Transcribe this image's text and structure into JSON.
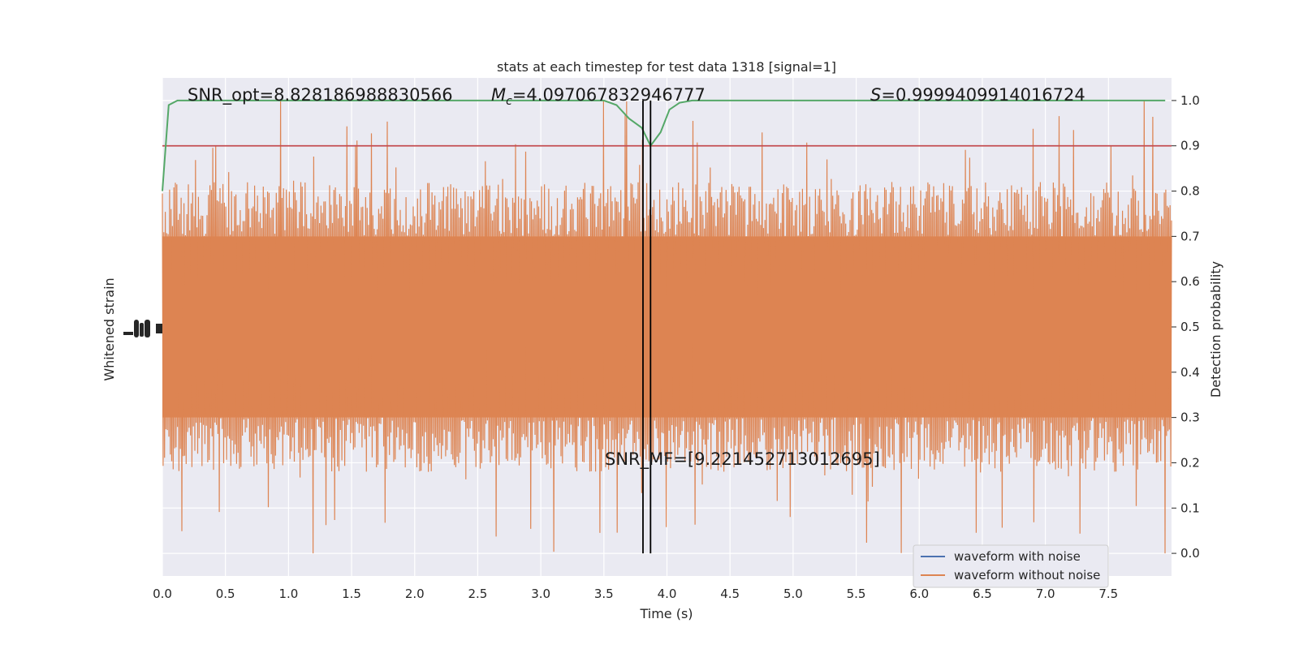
{
  "chart_data": {
    "type": "line",
    "title": "stats at each timestep for test data 1318 [signal=1]",
    "xlabel": "Time (s)",
    "ylabel_left": "Whitened strain",
    "ylabel_right": "Detection probability",
    "xlim": [
      0.0,
      8.0
    ],
    "ylim_right": [
      -0.05,
      1.05
    ],
    "x_ticks": [
      "0.0",
      "0.5",
      "1.0",
      "1.5",
      "2.0",
      "2.5",
      "3.0",
      "3.5",
      "4.0",
      "4.5",
      "5.0",
      "5.5",
      "6.0",
      "6.5",
      "7.0",
      "7.5"
    ],
    "x_tick_values": [
      0.0,
      0.5,
      1.0,
      1.5,
      2.0,
      2.5,
      3.0,
      3.5,
      4.0,
      4.5,
      5.0,
      5.5,
      6.0,
      6.5,
      7.0,
      7.5
    ],
    "y_ticks_right": [
      "0.0",
      "0.1",
      "0.2",
      "0.3",
      "0.4",
      "0.5",
      "0.6",
      "0.7",
      "0.8",
      "0.9",
      "1.0"
    ],
    "y_tick_values_right": [
      0.0,
      0.1,
      0.2,
      0.3,
      0.4,
      0.5,
      0.6,
      0.7,
      0.8,
      0.9,
      1.0
    ],
    "grid": true,
    "legend_position": "lower-right",
    "colors": {
      "background": "#eaeaf2",
      "grid": "#ffffff",
      "noisy": "#4c72b0",
      "clean": "#dd8452",
      "probability": "#55a868",
      "threshold": "#c44e52",
      "marker": "#000000"
    },
    "series": [
      {
        "name": "waveform with noise",
        "color": "#4c72b0"
      },
      {
        "name": "waveform without noise",
        "color": "#dd8452",
        "band_center": 0.5,
        "band_halfwidth": 0.2,
        "spike_max": 1.0,
        "spike_min": 0.0
      }
    ],
    "probability": {
      "x": [
        0.0,
        0.05,
        0.12,
        0.25,
        0.5,
        1.0,
        2.0,
        3.0,
        3.4,
        3.5,
        3.6,
        3.7,
        3.8,
        3.87,
        3.95,
        4.02,
        4.1,
        4.2,
        4.5,
        5.0,
        6.0,
        7.0,
        7.5,
        7.95
      ],
      "y": [
        0.8,
        0.99,
        1.0,
        1.0,
        1.0,
        1.0,
        1.0,
        1.0,
        1.0,
        1.0,
        0.99,
        0.96,
        0.94,
        0.9,
        0.93,
        0.98,
        0.995,
        1.0,
        1.0,
        1.0,
        1.0,
        1.0,
        1.0,
        1.0
      ]
    },
    "threshold": 0.9,
    "vlines": [
      3.81,
      3.87
    ],
    "annotations": {
      "snr_opt": "SNR_opt=8.828186988830566",
      "mc_symbol": "M",
      "mc_sub": "c",
      "mc_value": "=4.097067832946777",
      "s_symbol": "S",
      "s_value": "=0.9999409914016724",
      "snr_mf": "SNR_MF=[9.221452713012695]"
    }
  }
}
